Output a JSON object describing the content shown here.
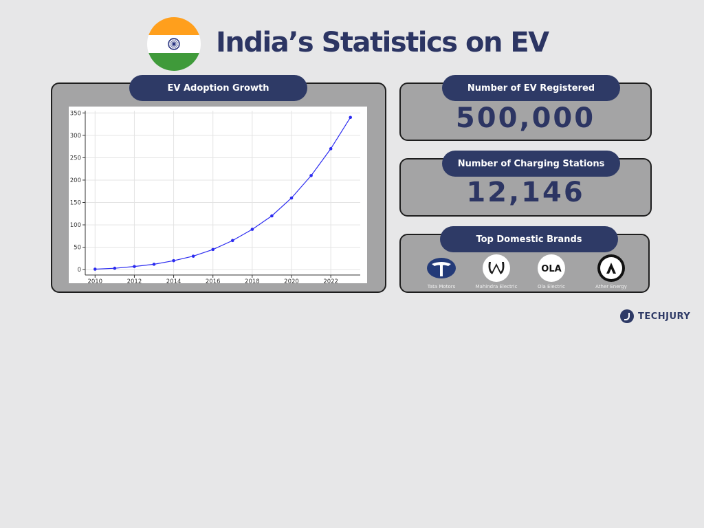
{
  "header": {
    "title": "India’s Statistics on EV"
  },
  "adoption": {
    "heading": "EV Adoption Growth"
  },
  "stats": {
    "ev_registered_label": "Number of EV Registered",
    "ev_registered_value": "500,000",
    "charging_label": "Number of Charging Stations",
    "charging_value": "12,146"
  },
  "brands": {
    "heading": "Top Domestic Brands",
    "items": [
      {
        "name": "Tata Motors",
        "icon": "tata-motors-logo-icon"
      },
      {
        "name": "Mahindra Electric",
        "icon": "mahindra-logo-icon"
      },
      {
        "name": "Ola Electric",
        "icon": "ola-logo-icon",
        "logo_text": "OLA"
      },
      {
        "name": "Ather Energy",
        "icon": "ather-logo-icon"
      }
    ]
  },
  "footer": {
    "brand": "TECHJURY"
  },
  "colors": {
    "navy": "#2e3a66",
    "title": "#2c3563",
    "panel": "#a4a4a5",
    "line": "#2b2bf0",
    "saffron": "#ff9f1c",
    "green": "#3f9a3a"
  },
  "chart_data": {
    "type": "line",
    "x": [
      2010,
      2011,
      2012,
      2013,
      2014,
      2015,
      2016,
      2017,
      2018,
      2019,
      2020,
      2021,
      2022,
      2023
    ],
    "series": [
      {
        "values": [
          1,
          3,
          7,
          12,
          20,
          30,
          45,
          65,
          90,
          120,
          160,
          210,
          270,
          340
        ]
      }
    ],
    "xticks": [
      "2010",
      "2012",
      "2014",
      "2016",
      "2018",
      "2020",
      "2022"
    ],
    "yticks": [
      "0",
      "50",
      "100",
      "150",
      "200",
      "250",
      "300",
      "350"
    ],
    "xlim": [
      2009.5,
      2023.5
    ],
    "ylim": [
      -12,
      355
    ],
    "grid": true,
    "marker": "dot"
  }
}
